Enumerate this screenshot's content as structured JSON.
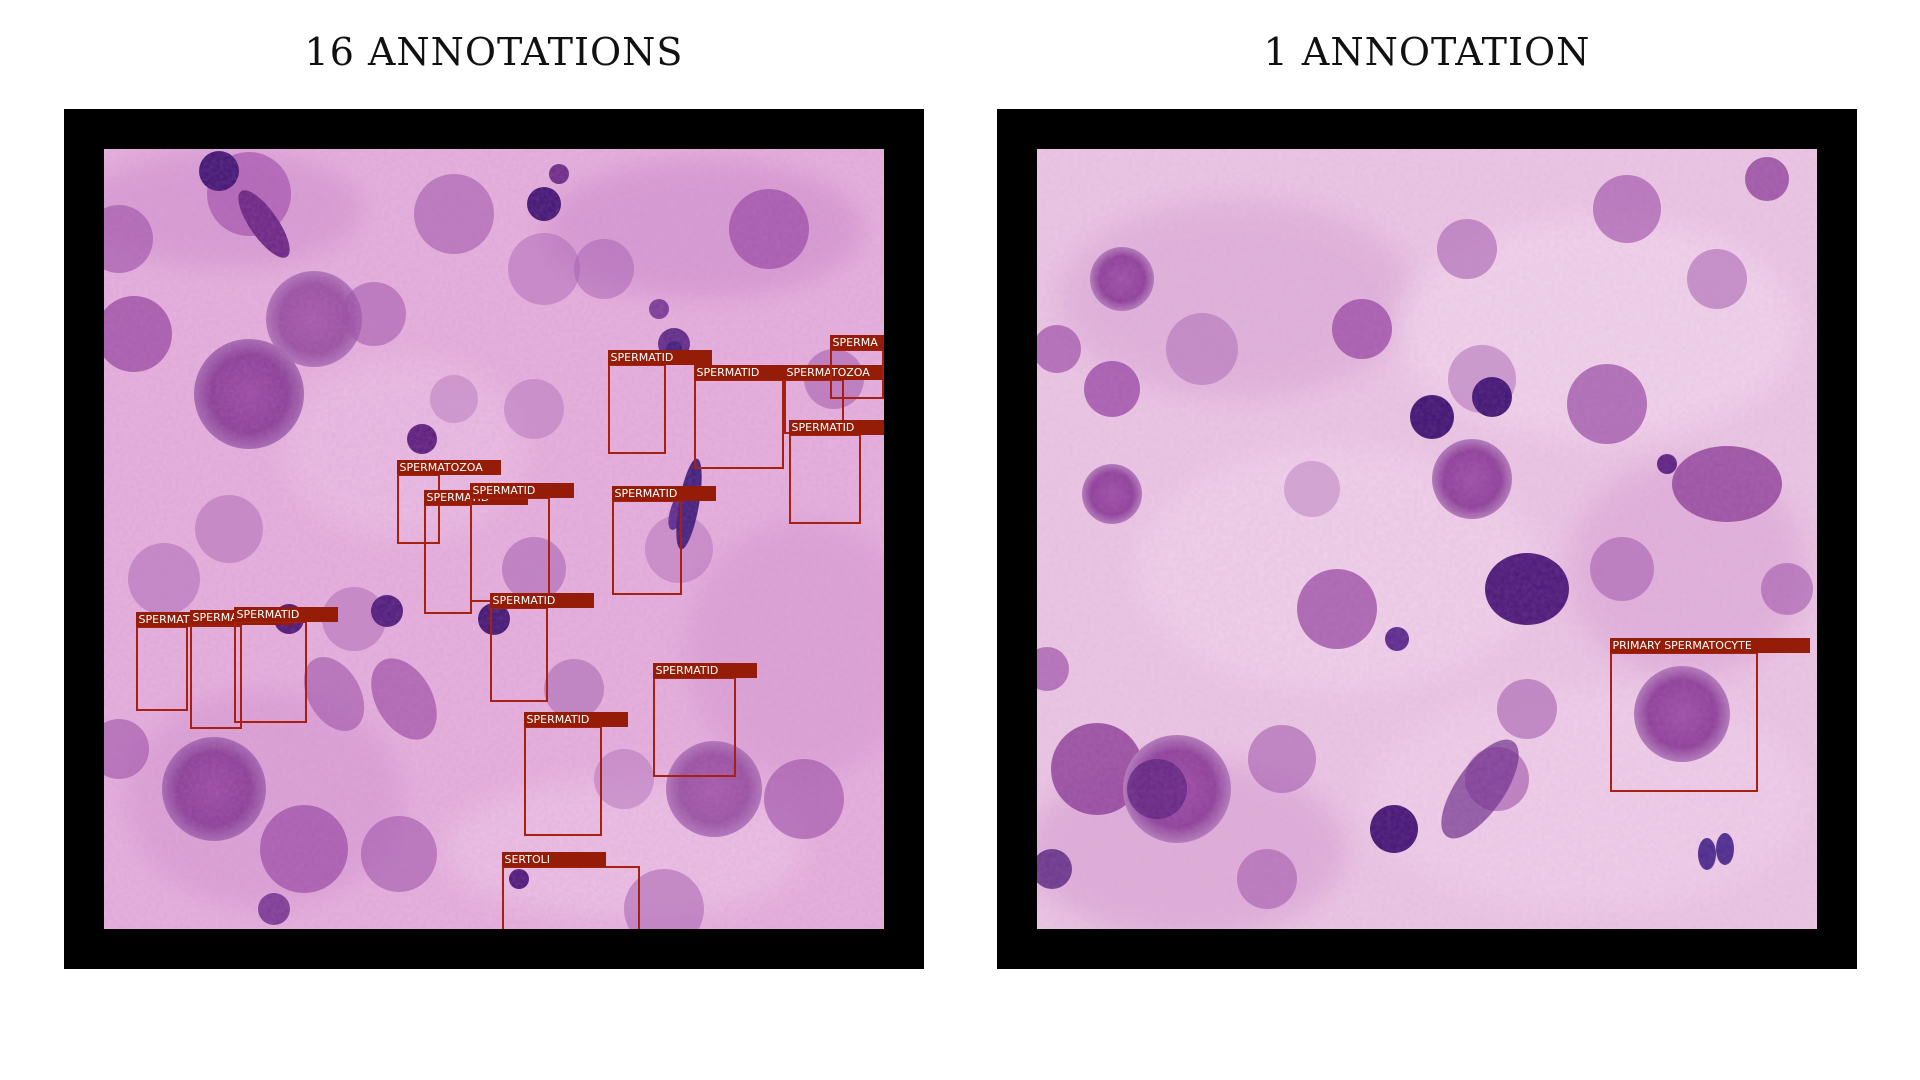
{
  "panels": [
    {
      "title": "16 ANNOTATIONS",
      "annotations": [
        {
          "label": "SPERMATID"
        },
        {
          "label": "SPERMATID"
        },
        {
          "label": "SPERMATOZOA"
        },
        {
          "label": "SPERMA"
        },
        {
          "label": "SPERMATID"
        },
        {
          "label": "SPERMATOZOA"
        },
        {
          "label": "SPERMATID"
        },
        {
          "label": "SPERMATID"
        },
        {
          "label": "SPERMATID"
        },
        {
          "label": "SPERMATID"
        },
        {
          "label": "SPERMATID"
        },
        {
          "label": "SPERMATID"
        },
        {
          "label": "SPERMATID"
        },
        {
          "label": "SPERMATID"
        },
        {
          "label": "SPERMATID"
        },
        {
          "label": "SERTOLI"
        }
      ]
    },
    {
      "title": "1 ANNOTATION",
      "annotations": [
        {
          "label": "PRIMARY SPERMATOCYTE"
        }
      ]
    }
  ],
  "colors": {
    "frame": "#000000",
    "tissue_bg": "#e7b3dd",
    "nucleus": "#8a3f95",
    "dark_nucleus": "#3e1370",
    "box_stroke": "#a8200f",
    "label_bg": "#951d08"
  }
}
